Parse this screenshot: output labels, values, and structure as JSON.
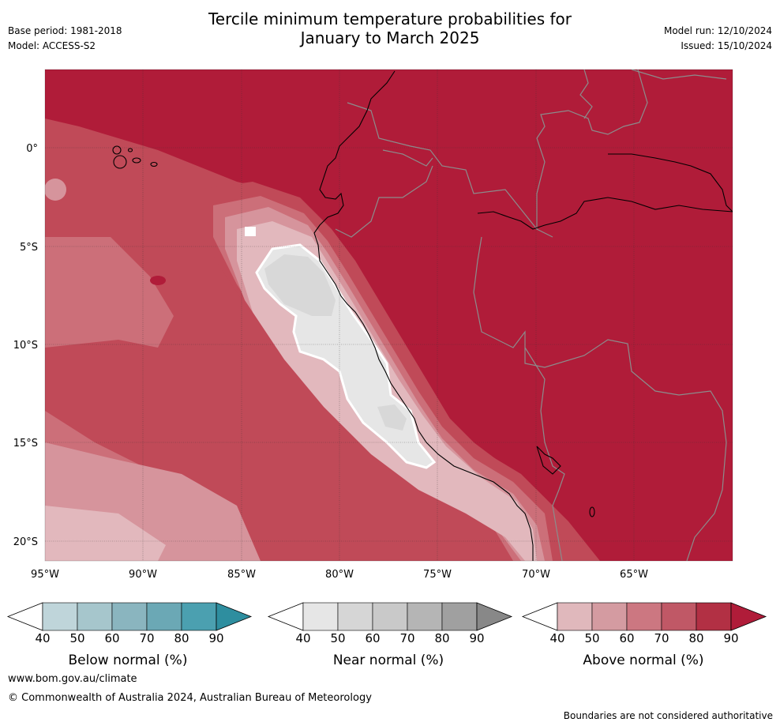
{
  "header": {
    "title_line1": "Tercile minimum temperature probabilities for",
    "title_line2": "January to March 2025",
    "base_period": "Base period: 1981-2018",
    "model": "Model: ACCESS-S2",
    "model_run": "Model run: 12/10/2024",
    "issued": "Issued: 15/10/2024"
  },
  "map": {
    "lat_labels": [
      "0°",
      "5°S",
      "10°S",
      "15°S",
      "20°S"
    ],
    "lon_labels": [
      "95°W",
      "90°W",
      "85°W",
      "80°W",
      "75°W",
      "70°W",
      "65°W"
    ],
    "colors": {
      "above_90": "#b01c39",
      "above_80": "#c04a58",
      "above_70": "#cc6f79",
      "above_60": "#d6949c",
      "above_50": "#e2b8bd",
      "near_50": "#e6e6e6",
      "near_60": "#d8d8d8",
      "coast": "#000000",
      "border": "#8c8c8c"
    }
  },
  "legends": [
    {
      "title": "Below normal (%)",
      "ticks": [
        "40",
        "50",
        "60",
        "70",
        "80",
        "90"
      ],
      "colors": [
        "#bfd5da",
        "#a6c6cc",
        "#8ab5bf",
        "#6ba8b5",
        "#4ba0b0",
        "#2e8e9f"
      ]
    },
    {
      "title": "Near normal (%)",
      "ticks": [
        "40",
        "50",
        "60",
        "70",
        "80",
        "90"
      ],
      "colors": [
        "#e6e6e6",
        "#d6d6d6",
        "#c9c9c9",
        "#b5b5b5",
        "#a0a0a0",
        "#888888"
      ]
    },
    {
      "title": "Above normal (%)",
      "ticks": [
        "40",
        "50",
        "60",
        "70",
        "80",
        "90"
      ],
      "colors": [
        "#e0b8bc",
        "#d49ba1",
        "#cc7781",
        "#c05866",
        "#b23044",
        "#b01c39"
      ]
    }
  ],
  "footer": {
    "website": "www.bom.gov.au/climate",
    "copyright": "© Commonwealth of Australia 2024, Australian Bureau of Meteorology",
    "disclaimer": "Boundaries are not considered authoritative"
  }
}
